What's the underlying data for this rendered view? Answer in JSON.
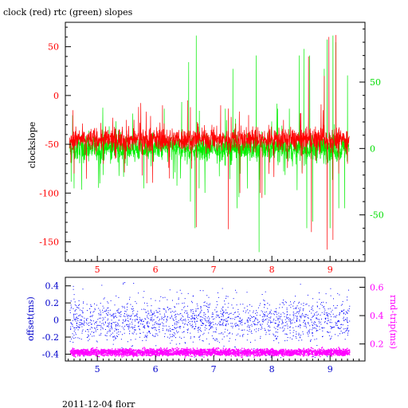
{
  "footer": "2011-12-04 florr",
  "colors": {
    "clock": "#ff0000",
    "rtc": "#00ee00",
    "left_axis_top": "#ff0000",
    "right_axis_top": "#00dd00",
    "left_axis_bottom": "#0000cc",
    "right_axis_bottom": "#ff00ff",
    "offset_points": "#0000ff",
    "rtt_points": "#ff00ff",
    "frame": "#000000"
  },
  "chart_data": [
    {
      "type": "line",
      "title": "clock (red) rtc (green) slopes",
      "xlabel": "",
      "ylabel": "clockslope",
      "xlim": [
        4.45,
        9.6
      ],
      "ylim": [
        -170,
        75
      ],
      "y2lim": [
        -85,
        95
      ],
      "x_ticks": [
        5,
        6,
        7,
        8,
        9
      ],
      "x_ticks_minor": [
        4.5,
        4.6,
        4.7,
        4.8,
        4.9,
        5.1,
        5.2,
        5.3,
        5.4,
        5.5,
        5.6,
        5.7,
        5.8,
        5.9,
        6.1,
        6.2,
        6.3,
        6.4,
        6.5,
        6.6,
        6.7,
        6.8,
        6.9,
        7.1,
        7.2,
        7.3,
        7.4,
        7.5,
        7.6,
        7.7,
        7.8,
        7.9,
        8.1,
        8.2,
        8.3,
        8.4,
        8.5,
        8.6,
        8.7,
        8.8,
        8.9,
        9.1,
        9.2,
        9.3,
        9.4,
        9.5
      ],
      "y_ticks": [
        50,
        0,
        -50,
        -100,
        -150
      ],
      "y2_ticks": [
        50,
        0,
        -50
      ],
      "grid": false,
      "series": [
        {
          "name": "clock",
          "axis": "left",
          "x_range": [
            4.52,
            9.33
          ],
          "baseline": -45,
          "noise": 6,
          "spikes": [
            {
              "x": 4.58,
              "y": -15
            },
            {
              "x": 4.6,
              "y": -80
            },
            {
              "x": 5.1,
              "y": -70
            },
            {
              "x": 5.5,
              "y": -25
            },
            {
              "x": 5.77,
              "y": -82
            },
            {
              "x": 5.85,
              "y": -90
            },
            {
              "x": 6.12,
              "y": -10
            },
            {
              "x": 6.24,
              "y": -85
            },
            {
              "x": 6.55,
              "y": -5
            },
            {
              "x": 6.6,
              "y": -12
            },
            {
              "x": 6.7,
              "y": -135
            },
            {
              "x": 6.62,
              "y": -75
            },
            {
              "x": 7.12,
              "y": -10
            },
            {
              "x": 7.25,
              "y": -137
            },
            {
              "x": 7.3,
              "y": -22
            },
            {
              "x": 7.45,
              "y": -100
            },
            {
              "x": 7.6,
              "y": -20
            },
            {
              "x": 7.8,
              "y": -100
            },
            {
              "x": 7.83,
              "y": -105
            },
            {
              "x": 8.2,
              "y": -25
            },
            {
              "x": 8.5,
              "y": -18
            },
            {
              "x": 8.52,
              "y": -80
            },
            {
              "x": 8.63,
              "y": 40
            },
            {
              "x": 8.68,
              "y": -140
            },
            {
              "x": 8.9,
              "y": 20
            },
            {
              "x": 8.95,
              "y": -158
            },
            {
              "x": 8.98,
              "y": 60
            },
            {
              "x": 9.05,
              "y": -148
            },
            {
              "x": 9.1,
              "y": 62
            },
            {
              "x": 9.15,
              "y": -80
            },
            {
              "x": 9.3,
              "y": -70
            }
          ]
        },
        {
          "name": "rtc",
          "axis": "right",
          "x_range": [
            4.52,
            9.33
          ],
          "baseline": 0,
          "noise": 5,
          "spikes": [
            {
              "x": 4.55,
              "y": -25
            },
            {
              "x": 4.6,
              "y": -30
            },
            {
              "x": 5.1,
              "y": -20
            },
            {
              "x": 5.8,
              "y": -30
            },
            {
              "x": 6.15,
              "y": 30
            },
            {
              "x": 6.45,
              "y": 35
            },
            {
              "x": 6.57,
              "y": 65
            },
            {
              "x": 6.6,
              "y": -40
            },
            {
              "x": 6.68,
              "y": -60
            },
            {
              "x": 6.7,
              "y": 85
            },
            {
              "x": 6.75,
              "y": -30
            },
            {
              "x": 7.2,
              "y": 30
            },
            {
              "x": 7.33,
              "y": 60
            },
            {
              "x": 7.4,
              "y": -45
            },
            {
              "x": 7.73,
              "y": 70
            },
            {
              "x": 7.78,
              "y": -78
            },
            {
              "x": 7.88,
              "y": -35
            },
            {
              "x": 8.1,
              "y": 30
            },
            {
              "x": 8.3,
              "y": 30
            },
            {
              "x": 8.47,
              "y": 70
            },
            {
              "x": 8.55,
              "y": 75
            },
            {
              "x": 8.6,
              "y": -60
            },
            {
              "x": 8.65,
              "y": 70
            },
            {
              "x": 8.7,
              "y": -55
            },
            {
              "x": 8.9,
              "y": 60
            },
            {
              "x": 8.95,
              "y": 82
            },
            {
              "x": 9.0,
              "y": -60
            },
            {
              "x": 9.05,
              "y": 85
            },
            {
              "x": 9.1,
              "y": 80
            },
            {
              "x": 9.15,
              "y": -45
            },
            {
              "x": 9.25,
              "y": -45
            },
            {
              "x": 9.3,
              "y": 55
            }
          ]
        }
      ]
    },
    {
      "type": "scatter",
      "title": "",
      "xlabel": "",
      "ylabel": "offset(ms)",
      "y2label": "rnd-trip(ms)",
      "xlim": [
        4.45,
        9.6
      ],
      "ylim": [
        -0.48,
        0.5
      ],
      "y2lim": [
        0.08,
        0.67
      ],
      "x_ticks": [
        5,
        6,
        7,
        8,
        9
      ],
      "y_ticks": [
        0.4,
        0.2,
        0,
        -0.2,
        -0.4
      ],
      "y2_ticks": [
        0.6,
        0.4,
        0.2
      ],
      "grid": false,
      "series": [
        {
          "name": "offset",
          "axis": "left",
          "x_range": [
            4.52,
            9.33
          ],
          "center": 0.0,
          "spread": 0.12,
          "outlier_spread": 0.45
        },
        {
          "name": "rnd-trip",
          "axis": "right",
          "x_range": [
            4.52,
            9.33
          ],
          "center": 0.145,
          "spread": 0.012
        }
      ]
    }
  ]
}
